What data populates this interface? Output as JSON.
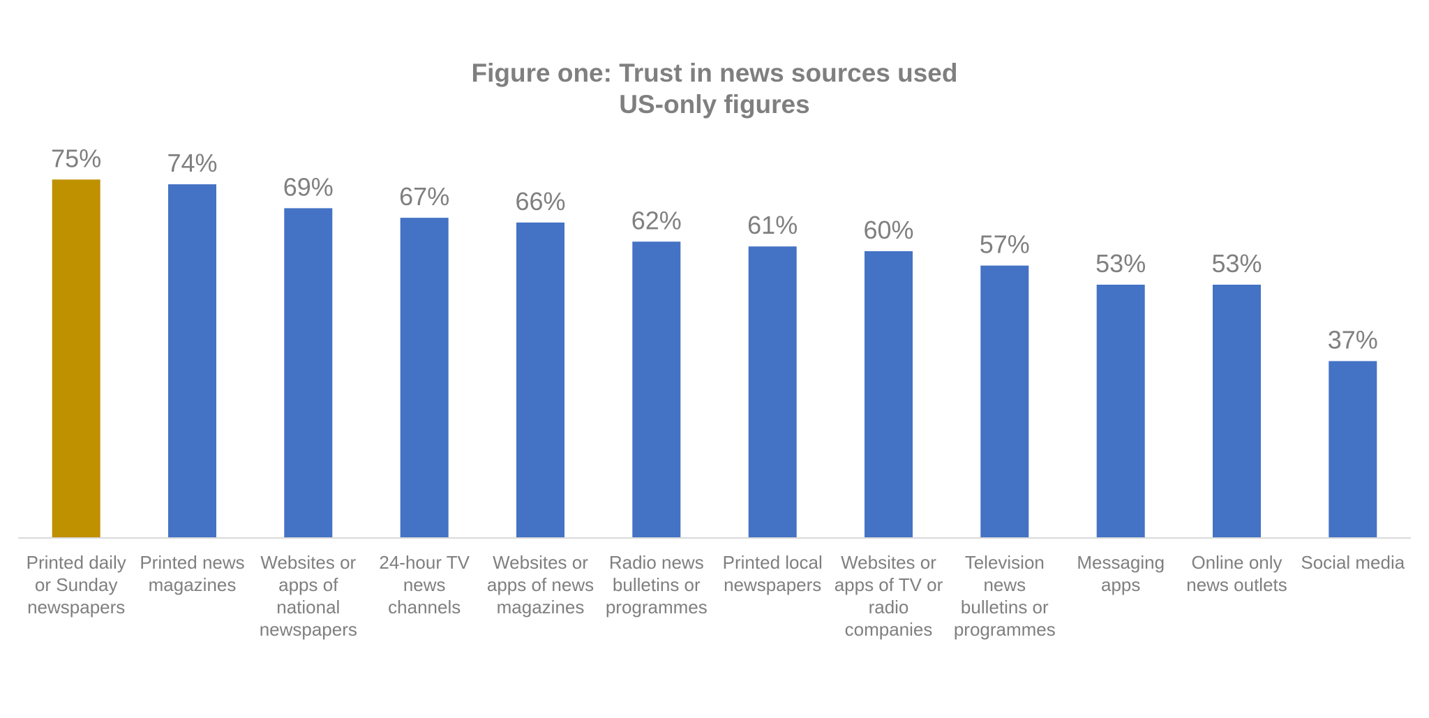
{
  "chart_data": {
    "type": "bar",
    "title": "Figure one: Trust in news sources used",
    "subtitle": "US-only figures",
    "xlabel": "",
    "ylabel": "",
    "ylim": [
      0,
      100
    ],
    "grid": false,
    "legend": "none",
    "value_format": "percent",
    "categories": [
      "Printed daily or Sunday newspapers",
      "Printed news magazines",
      "Websites or apps of national newspapers",
      "24-hour TV news channels",
      "Websites or apps of news magazines",
      "Radio news bulletins or programmes",
      "Printed local newspapers",
      "Websites or apps of TV or radio companies",
      "Television news bulletins or programmes",
      "Messaging apps",
      "Online only news outlets",
      "Social media"
    ],
    "category_lines": [
      [
        "Printed daily",
        "or Sunday",
        "newspapers"
      ],
      [
        "Printed news",
        "magazines"
      ],
      [
        "Websites or",
        "apps of",
        "national",
        "newspapers"
      ],
      [
        "24-hour TV",
        "news",
        "channels"
      ],
      [
        "Websites or",
        "apps of news",
        "magazines"
      ],
      [
        "Radio news",
        "bulletins or",
        "programmes"
      ],
      [
        "Printed local",
        "newspapers"
      ],
      [
        "Websites or",
        "apps of TV or",
        "radio",
        "companies"
      ],
      [
        "Television",
        "news",
        "bulletins or",
        "programmes"
      ],
      [
        "Messaging",
        "apps"
      ],
      [
        "Online only",
        "news outlets"
      ],
      [
        "Social media"
      ]
    ],
    "values": [
      75,
      74,
      69,
      67,
      66,
      62,
      61,
      60,
      57,
      53,
      53,
      37
    ],
    "data_labels": [
      "75%",
      "74%",
      "69%",
      "67%",
      "66%",
      "62%",
      "61%",
      "60%",
      "57%",
      "53%",
      "53%",
      "37%"
    ],
    "highlight_index": 0,
    "colors": {
      "bar": "#4472c4",
      "highlight": "#bf9000",
      "text": "#7f7f7f",
      "title": "#7f7f7f",
      "axis": "#d9d9d9"
    }
  }
}
